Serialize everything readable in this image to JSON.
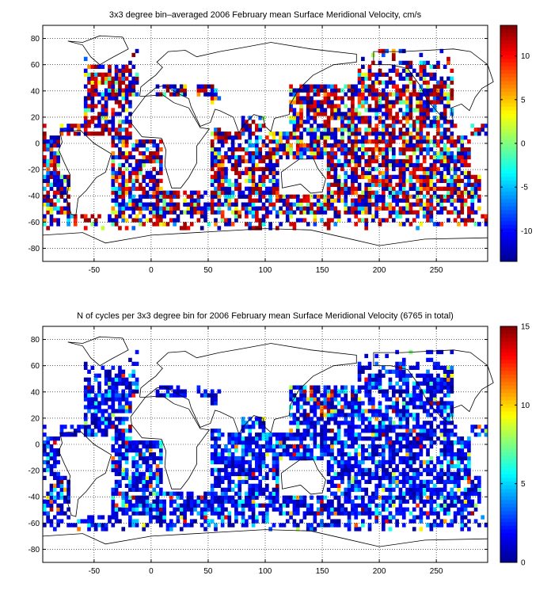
{
  "chart_data": [
    {
      "type": "heatmap",
      "title": "3x3 degree bin–averaged 2006 February mean Surface Meridional Velocity, cm/s",
      "xlabel": "",
      "ylabel": "",
      "xlim": [
        -95,
        295
      ],
      "ylim": [
        -90,
        90
      ],
      "x_ticks": [
        -50,
        0,
        50,
        100,
        150,
        200,
        250
      ],
      "y_ticks": [
        80,
        60,
        40,
        20,
        0,
        -20,
        -40,
        -60,
        -80
      ],
      "bin_size_deg": 3,
      "grid": true,
      "colorbar": {
        "range": [
          -13.5,
          13.5
        ],
        "ticks": [
          10,
          5,
          0,
          -5,
          -10
        ],
        "colormap": "jet",
        "placement": "right"
      },
      "colormap_colors": [
        "#00008f",
        "#0000ff",
        "#00ffff",
        "#ffff00",
        "#ff0000",
        "#800000"
      ]
    },
    {
      "type": "heatmap",
      "title": "N of cycles per 3x3 degree bin for 2006 February mean Surface Meridional Velocity (6765 in total)",
      "xlabel": "",
      "ylabel": "",
      "xlim": [
        -95,
        295
      ],
      "ylim": [
        -90,
        90
      ],
      "x_ticks": [
        -50,
        0,
        50,
        100,
        150,
        200,
        250
      ],
      "y_ticks": [
        80,
        60,
        40,
        20,
        0,
        -20,
        -40,
        -60,
        -80
      ],
      "bin_size_deg": 3,
      "grid": true,
      "total": 6765,
      "colorbar": {
        "range": [
          0,
          15
        ],
        "ticks": [
          15,
          10,
          5,
          0
        ],
        "colormap": "jet",
        "placement": "right"
      },
      "colormap_colors": [
        "#00008f",
        "#0000ff",
        "#00ffff",
        "#ffff00",
        "#ff0000",
        "#800000"
      ]
    }
  ]
}
